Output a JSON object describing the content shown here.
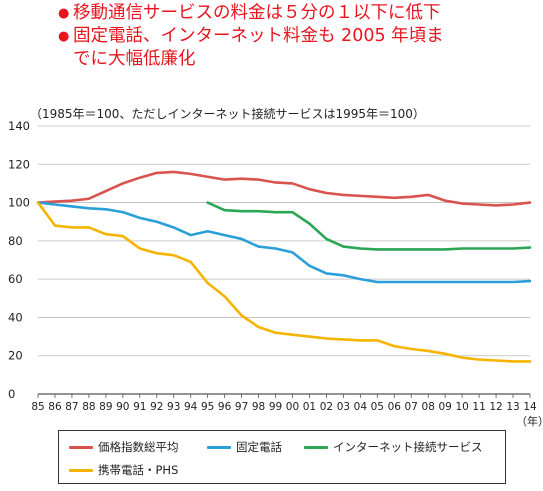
{
  "headlines": [
    {
      "bullet": "●",
      "text": "移動通信サービスの料金は５分の１以下に低下"
    },
    {
      "bullet": "●",
      "text": "固定電話、インターネット料金も 2005 年頃ま\nでに大幅低廉化"
    }
  ],
  "colors": {
    "headline": "#e8141e",
    "axis": "#555555",
    "grid": "#bbbbbb",
    "series": [
      "#d9534f",
      "#2b9fd9",
      "#2aa655",
      "#f5b400"
    ]
  },
  "chart_data": {
    "type": "line",
    "note": "（1985年＝100、ただしインターネット接続サービスは1995年＝100）",
    "unit_x": "（年）",
    "ylim": [
      0,
      140
    ],
    "yticks": [
      "0",
      "20",
      "40",
      "60",
      "80",
      "100",
      "120",
      "140"
    ],
    "categories": [
      "85",
      "86",
      "87",
      "88",
      "89",
      "90",
      "91",
      "92",
      "93",
      "94",
      "95",
      "96",
      "97",
      "98",
      "99",
      "00",
      "01",
      "02",
      "03",
      "04",
      "05",
      "06",
      "07",
      "08",
      "09",
      "10",
      "11",
      "12",
      "13",
      "14"
    ],
    "grid": "horizontal",
    "legend_position": "bottom",
    "series": [
      {
        "name": "価格指数総平均",
        "values": [
          100,
          100.5,
          101,
          102,
          106,
          110,
          113,
          115.5,
          116,
          115,
          113.5,
          112,
          112.5,
          112,
          110.5,
          110,
          107,
          105,
          104,
          103.5,
          103,
          102.5,
          103,
          104,
          101,
          99.5,
          99,
          98.5,
          99,
          100
        ]
      },
      {
        "name": "固定電話",
        "values": [
          100,
          99,
          98,
          97,
          96.5,
          95,
          92,
          90,
          87,
          83,
          85,
          83,
          81,
          77,
          76,
          74,
          67,
          63,
          62,
          60,
          58.5,
          58.5,
          58.5,
          58.5,
          58.5,
          58.5,
          58.5,
          58.5,
          58.5,
          59
        ]
      },
      {
        "name": "インターネット接続サービス",
        "values": [
          null,
          null,
          null,
          null,
          null,
          null,
          null,
          null,
          null,
          null,
          100,
          96,
          95.5,
          95.5,
          95,
          95,
          89,
          81,
          77,
          76,
          75.5,
          75.5,
          75.5,
          75.5,
          75.5,
          76,
          76,
          76,
          76,
          76.5
        ]
      },
      {
        "name": "携帯電話・PHS",
        "values": [
          100,
          88,
          87,
          87,
          83.5,
          82.5,
          76,
          73.5,
          72.5,
          69,
          58,
          51,
          41,
          35,
          32,
          31,
          30,
          29,
          28.5,
          28,
          28,
          25,
          23.5,
          22.5,
          21,
          19,
          18,
          17.5,
          17,
          17
        ]
      }
    ]
  }
}
